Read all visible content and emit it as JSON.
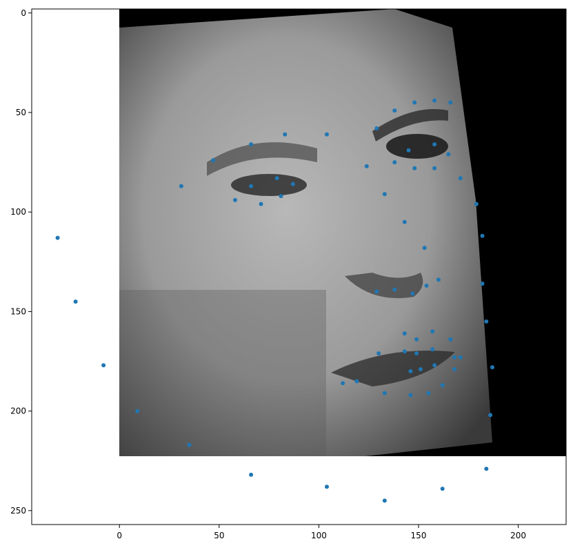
{
  "chart_data": {
    "type": "scatter",
    "title": "",
    "xlabel": "",
    "ylabel": "",
    "xlim": [
      -44,
      224
    ],
    "ylim": [
      257,
      -2
    ],
    "y_inverted": true,
    "grid": false,
    "x_ticks": [
      0,
      50,
      100,
      150,
      200
    ],
    "y_ticks": [
      0,
      50,
      100,
      150,
      200,
      250
    ],
    "x_tick_labels": [
      "0",
      "50",
      "100",
      "150",
      "200"
    ],
    "y_tick_labels": [
      "0",
      "50",
      "100",
      "150",
      "200",
      "250"
    ],
    "background_image": {
      "description": "grayscale face",
      "extent_x": [
        0,
        224
      ],
      "extent_y": [
        0,
        224
      ]
    },
    "marker_color": "#1f77b4",
    "points": [
      [
        -31,
        113
      ],
      [
        -22,
        145
      ],
      [
        -8,
        177
      ],
      [
        9,
        200
      ],
      [
        35,
        217
      ],
      [
        66,
        232
      ],
      [
        104,
        238
      ],
      [
        133,
        245
      ],
      [
        162,
        239
      ],
      [
        184,
        229
      ],
      [
        186,
        202
      ],
      [
        187,
        178
      ],
      [
        184,
        155
      ],
      [
        182,
        136
      ],
      [
        182,
        112
      ],
      [
        179,
        96
      ],
      [
        171,
        83
      ],
      [
        166,
        45
      ],
      [
        158,
        44
      ],
      [
        148,
        45
      ],
      [
        138,
        49
      ],
      [
        129,
        58
      ],
      [
        104,
        61
      ],
      [
        83,
        61
      ],
      [
        66,
        66
      ],
      [
        47,
        74
      ],
      [
        31,
        87
      ],
      [
        124,
        77
      ],
      [
        133,
        91
      ],
      [
        143,
        105
      ],
      [
        153,
        118
      ],
      [
        129,
        140
      ],
      [
        138,
        139
      ],
      [
        147,
        141
      ],
      [
        154,
        137
      ],
      [
        160,
        134
      ],
      [
        58,
        94
      ],
      [
        71,
        96
      ],
      [
        81,
        92
      ],
      [
        87,
        86
      ],
      [
        79,
        83
      ],
      [
        66,
        87
      ],
      [
        145,
        69
      ],
      [
        148,
        78
      ],
      [
        158,
        78
      ],
      [
        165,
        71
      ],
      [
        158,
        66
      ],
      [
        138,
        75
      ],
      [
        112,
        186
      ],
      [
        119,
        185
      ],
      [
        130,
        171
      ],
      [
        143,
        170
      ],
      [
        149,
        171
      ],
      [
        157,
        169
      ],
      [
        158,
        177
      ],
      [
        151,
        179
      ],
      [
        146,
        180
      ],
      [
        133,
        191
      ],
      [
        146,
        192
      ],
      [
        155,
        191
      ],
      [
        162,
        187
      ],
      [
        168,
        179
      ],
      [
        168,
        173
      ],
      [
        171,
        173
      ],
      [
        143,
        161
      ],
      [
        149,
        164
      ],
      [
        157,
        160
      ],
      [
        166,
        164
      ]
    ]
  }
}
